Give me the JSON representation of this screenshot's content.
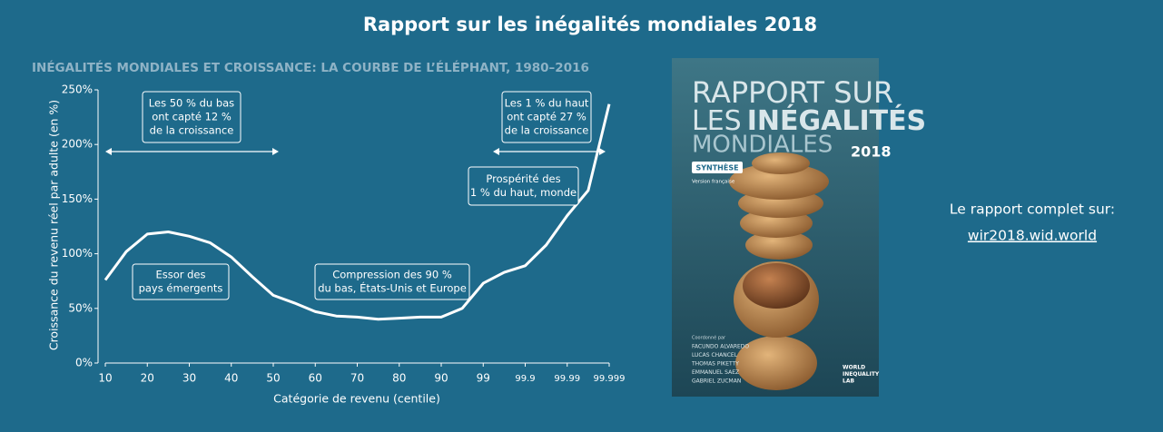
{
  "title": "Rapport sur les inégalités  mondiales 2018",
  "chart_data": {
    "type": "line",
    "title": "INÉGALITÉS MONDIALES ET CROISSANCE: LA COURBE DE L’ÉLÉPHANT, 1980–2016",
    "x_label": "Catégorie de revenu (centile)",
    "y_label": "Croissance du revenu réel par adulte (en %)",
    "categories": [
      "10",
      null,
      "20",
      null,
      "30",
      null,
      "40",
      null,
      "50",
      null,
      "60",
      null,
      "70",
      null,
      "80",
      null,
      "90",
      null,
      "99",
      null,
      "99.9",
      null,
      "99.99",
      null,
      "99.999"
    ],
    "values": [
      76,
      102,
      118,
      120,
      116,
      110,
      97,
      79,
      62,
      55,
      47,
      43,
      42,
      40,
      41,
      42,
      42,
      50,
      73,
      83,
      89,
      108,
      135,
      158,
      237
    ],
    "color": "#ffffff",
    "ylim": [
      0,
      250
    ],
    "yticks": [
      {
        "value": 0,
        "label": "0%"
      },
      {
        "value": 50,
        "label": "50%"
      },
      {
        "value": 100,
        "label": "100%"
      },
      {
        "value": 150,
        "label": "150%"
      },
      {
        "value": 200,
        "label": "200%"
      },
      {
        "value": 250,
        "label": "250%"
      }
    ],
    "annotations": [
      [
        "Les 50 % du bas",
        "ont capté 12 %",
        "de la croissance"
      ],
      [
        "Les 1 % du haut",
        "ont capté 27 %",
        "de la croissance"
      ],
      [
        "Prospérité des",
        "1 % du haut, monde"
      ],
      [
        "Essor des",
        "pays émergents"
      ],
      [
        "Compression des 90 %",
        "du bas, États-Unis et Europe"
      ]
    ]
  },
  "cover": {
    "line1": "RAPPORT SUR",
    "line2a": "LES",
    "line2b": "INÉGALITÉS",
    "line3": "MONDIALES",
    "year": "2018",
    "badge": "SYNTHÈSE",
    "edition": "Version française",
    "coordinated": "Coordonné par",
    "authors": [
      "FACUNDO ALVAREDO",
      "LUCAS CHANCEL",
      "THOMAS PIKETTY",
      "EMMANUEL SAEZ",
      "GABRIEL ZUCMAN"
    ],
    "logo": [
      "WORLD",
      "INEQUALITY",
      "LAB"
    ]
  },
  "side": {
    "text": "Le rapport complet sur:",
    "link": "wir2018.wid.world"
  }
}
